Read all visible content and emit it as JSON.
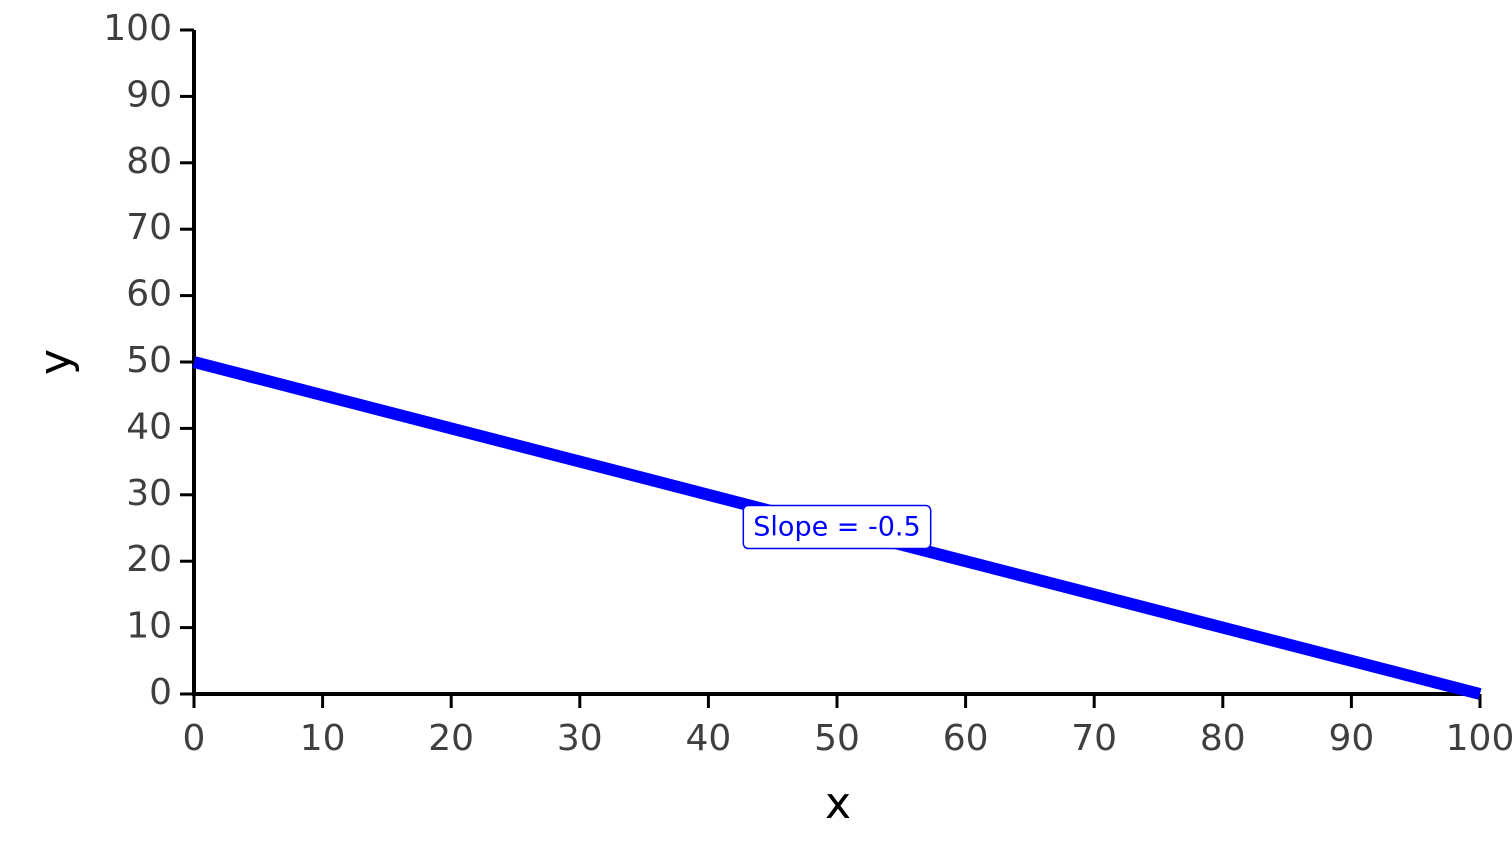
{
  "chart_data": {
    "type": "line",
    "x_label": "x",
    "y_label": "y",
    "x": [
      0,
      100
    ],
    "values": [
      50,
      0
    ],
    "color": "#0000ff",
    "xlim": [
      0,
      100
    ],
    "ylim": [
      0,
      100
    ],
    "xticks": [
      0,
      10,
      20,
      30,
      40,
      50,
      60,
      70,
      80,
      90,
      100
    ],
    "yticks": [
      0,
      10,
      20,
      30,
      40,
      50,
      60,
      70,
      80,
      90,
      100
    ],
    "annotation": "Slope = -0.5"
  }
}
